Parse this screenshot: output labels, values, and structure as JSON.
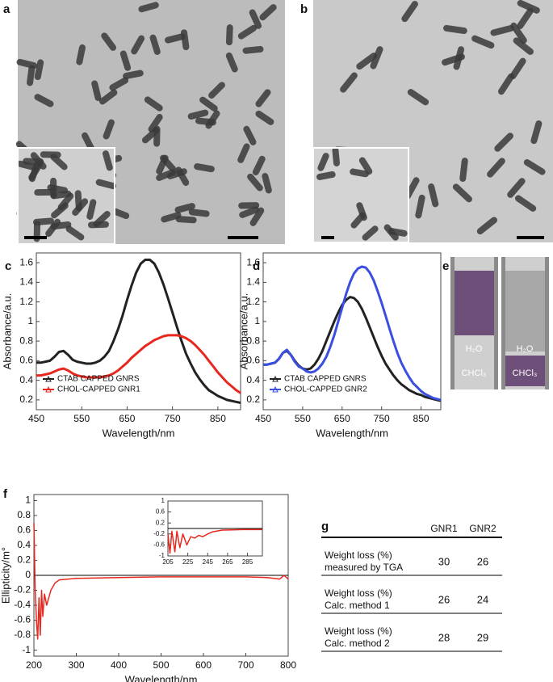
{
  "panel_labels": [
    "a",
    "b",
    "c",
    "d",
    "e",
    "f",
    "g"
  ],
  "chart_data": [
    {
      "type": "line",
      "ylabel": "Absorbance/a.u.",
      "xlabel": "Wavelength/nm",
      "xlim": [
        450,
        900
      ],
      "xticks": [
        450,
        550,
        650,
        750,
        850
      ],
      "ylim": [
        0.1,
        1.7
      ],
      "yticks": [
        0.2,
        0.4,
        0.6,
        0.8,
        1,
        1.2,
        1.4,
        1.6
      ],
      "legend": "lower left",
      "x": [
        450,
        460,
        470,
        480,
        490,
        500,
        510,
        520,
        530,
        540,
        550,
        560,
        570,
        580,
        590,
        600,
        610,
        620,
        630,
        640,
        650,
        660,
        670,
        680,
        690,
        700,
        710,
        720,
        730,
        740,
        750,
        760,
        770,
        780,
        790,
        800,
        810,
        820,
        830,
        840,
        850,
        860,
        870,
        880,
        890,
        900
      ],
      "series": [
        {
          "name": "CTAB CAPPED GNRS",
          "color": "#222222",
          "values": [
            0.58,
            0.58,
            0.59,
            0.6,
            0.64,
            0.69,
            0.7,
            0.66,
            0.61,
            0.59,
            0.58,
            0.57,
            0.57,
            0.58,
            0.6,
            0.64,
            0.7,
            0.8,
            0.92,
            1.06,
            1.22,
            1.37,
            1.5,
            1.59,
            1.63,
            1.63,
            1.59,
            1.5,
            1.38,
            1.24,
            1.09,
            0.94,
            0.8,
            0.67,
            0.57,
            0.48,
            0.41,
            0.35,
            0.3,
            0.27,
            0.24,
            0.22,
            0.2,
            0.19,
            0.18,
            0.17
          ]
        },
        {
          "name": "CHOL-CAPPED GNR1",
          "color": "#e8281e",
          "values": [
            0.45,
            0.45,
            0.46,
            0.47,
            0.49,
            0.51,
            0.52,
            0.5,
            0.47,
            0.45,
            0.44,
            0.43,
            0.43,
            0.43,
            0.43,
            0.44,
            0.45,
            0.47,
            0.5,
            0.54,
            0.58,
            0.63,
            0.67,
            0.71,
            0.75,
            0.78,
            0.81,
            0.83,
            0.85,
            0.86,
            0.86,
            0.86,
            0.85,
            0.83,
            0.8,
            0.76,
            0.71,
            0.66,
            0.6,
            0.54,
            0.48,
            0.43,
            0.38,
            0.34,
            0.3,
            0.27
          ]
        }
      ]
    },
    {
      "type": "line",
      "ylabel": "Absorbance/a.u.",
      "xlabel": "Wavelength/nm",
      "xlim": [
        450,
        900
      ],
      "xticks": [
        450,
        550,
        650,
        750,
        850
      ],
      "ylim": [
        0.1,
        1.7
      ],
      "yticks": [
        0.2,
        0.4,
        0.6,
        0.8,
        1,
        1.2,
        1.4,
        1.6
      ],
      "legend": "lower left",
      "x": [
        450,
        460,
        470,
        480,
        490,
        500,
        510,
        520,
        530,
        540,
        550,
        560,
        570,
        580,
        590,
        600,
        610,
        620,
        630,
        640,
        650,
        660,
        670,
        680,
        690,
        700,
        710,
        720,
        730,
        740,
        750,
        760,
        770,
        780,
        790,
        800,
        810,
        820,
        830,
        840,
        850,
        860,
        870,
        880,
        890,
        900
      ],
      "series": [
        {
          "name": "CTAB CAPPED GNRS",
          "color": "#222222",
          "values": [
            0.56,
            0.56,
            0.57,
            0.58,
            0.62,
            0.68,
            0.7,
            0.66,
            0.6,
            0.55,
            0.52,
            0.51,
            0.52,
            0.56,
            0.62,
            0.7,
            0.8,
            0.9,
            1.0,
            1.09,
            1.17,
            1.22,
            1.25,
            1.24,
            1.2,
            1.13,
            1.04,
            0.94,
            0.84,
            0.74,
            0.65,
            0.57,
            0.51,
            0.45,
            0.4,
            0.36,
            0.33,
            0.3,
            0.28,
            0.26,
            0.25,
            0.23,
            0.22,
            0.21,
            0.2,
            0.19
          ]
        },
        {
          "name": "CHOL-CAPPED GNR2",
          "color": "#3a4ee0",
          "values": [
            0.56,
            0.56,
            0.57,
            0.58,
            0.62,
            0.68,
            0.71,
            0.66,
            0.59,
            0.54,
            0.52,
            0.49,
            0.48,
            0.49,
            0.52,
            0.57,
            0.64,
            0.74,
            0.86,
            1.0,
            1.14,
            1.28,
            1.4,
            1.49,
            1.54,
            1.56,
            1.55,
            1.5,
            1.42,
            1.31,
            1.19,
            1.06,
            0.93,
            0.8,
            0.68,
            0.58,
            0.5,
            0.43,
            0.37,
            0.33,
            0.29,
            0.26,
            0.24,
            0.22,
            0.21,
            0.2
          ]
        }
      ]
    },
    {
      "type": "line",
      "ylabel": "Ellipticity/m°",
      "xlabel": "Wavelength/nm",
      "xlim": [
        200,
        800
      ],
      "xticks": [
        200,
        300,
        400,
        500,
        600,
        700,
        800
      ],
      "ylim": [
        -1.08,
        1.08
      ],
      "yticks": [
        -1,
        -0.8,
        -0.6,
        -0.4,
        -0.2,
        0,
        0.2,
        0.4,
        0.6,
        0.8,
        1
      ],
      "zero_line": true,
      "x": [
        200,
        203,
        206,
        209,
        212,
        215,
        218,
        221,
        225,
        230,
        235,
        240,
        250,
        260,
        300,
        400,
        500,
        600,
        700,
        750,
        780,
        790,
        800
      ],
      "series": [
        {
          "color": "#e8281e",
          "values": [
            0.7,
            -0.2,
            -0.6,
            -0.85,
            -0.3,
            -0.8,
            -0.2,
            -0.55,
            -0.25,
            -0.4,
            -0.3,
            -0.2,
            -0.1,
            -0.06,
            -0.04,
            -0.03,
            -0.02,
            -0.02,
            -0.02,
            -0.03,
            -0.05,
            0.0,
            -0.05
          ]
        }
      ]
    },
    {
      "type": "line",
      "xlim": [
        205,
        300
      ],
      "xticks": [
        205,
        225,
        245,
        265,
        285
      ],
      "ylim": [
        -1,
        1
      ],
      "yticks": [
        -1,
        -0.6,
        -0.2,
        0.2,
        0.6,
        1
      ],
      "zero_line": true,
      "x": [
        205,
        207,
        209,
        212,
        214,
        217,
        220,
        224,
        228,
        232,
        236,
        240,
        245,
        250,
        260,
        270,
        280,
        300
      ],
      "series": [
        {
          "color": "#e8281e",
          "values": [
            -0.2,
            -0.9,
            -0.1,
            -0.85,
            -0.1,
            -0.7,
            -0.2,
            -0.6,
            -0.3,
            -0.35,
            -0.25,
            -0.3,
            -0.2,
            -0.12,
            -0.06,
            -0.05,
            -0.04,
            -0.04
          ]
        }
      ]
    }
  ],
  "photo_e": {
    "labels": [
      "H₂O",
      "CHCl₃",
      "H₂O",
      "CHCl₃"
    ]
  },
  "table": {
    "header": [
      "GNR1",
      "GNR2"
    ],
    "rows": [
      [
        [
          "Weight loss (%)",
          "measured by TGA"
        ],
        30,
        26
      ],
      [
        [
          "Weight loss (%)",
          "Calc. method 1"
        ],
        26,
        24
      ],
      [
        [
          "Weight loss (%)",
          "Calc. method 2"
        ],
        28,
        29
      ]
    ]
  }
}
